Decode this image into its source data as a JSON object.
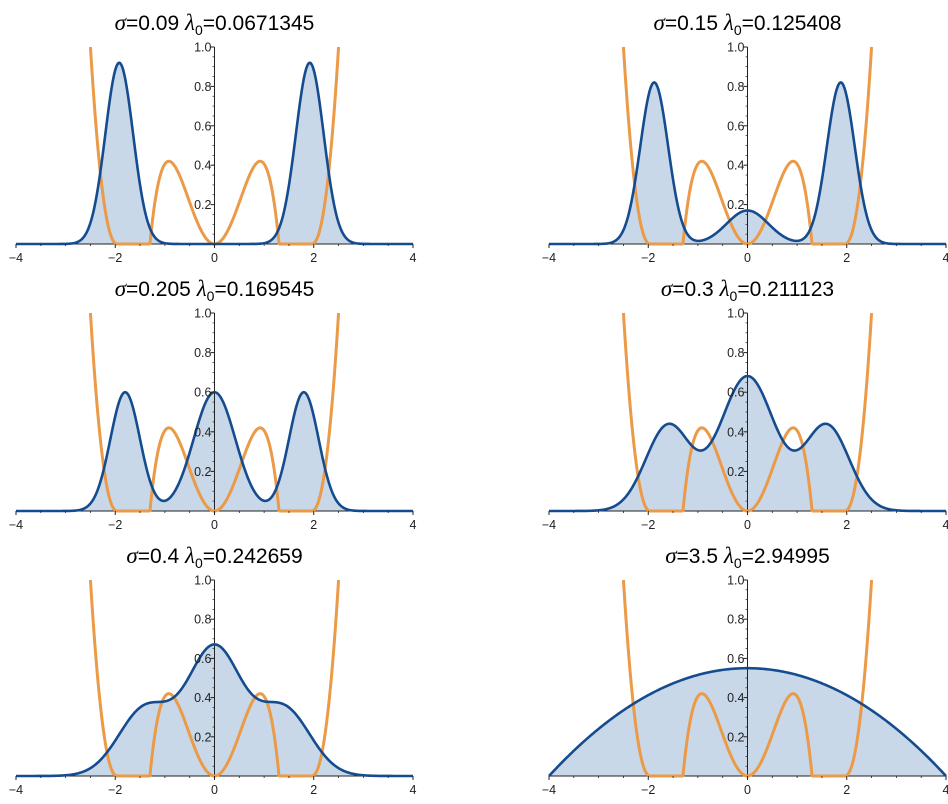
{
  "chart_data": [
    {
      "type": "area",
      "title": {
        "sym1": "σ",
        "v1": "=0.09 ",
        "sym2": "λ",
        "sub": "0",
        "v2": "=0.0671345"
      },
      "xlim": [
        -4,
        4
      ],
      "ylim": [
        0,
        1.0
      ],
      "x_ticks": [
        "−4",
        "−2",
        "0",
        "2",
        "4"
      ],
      "y_ticks": [
        "0.2",
        "0.4",
        "0.6",
        "0.8",
        "1.0"
      ],
      "density_peaks": [
        {
          "x": -1.92,
          "y": 0.92
        },
        {
          "x": 0.0,
          "y": 0.0
        },
        {
          "x": 1.92,
          "y": 0.92
        }
      ]
    },
    {
      "type": "area",
      "title": {
        "sym1": "σ",
        "v1": "=0.15 ",
        "sym2": "λ",
        "sub": "0",
        "v2": "=0.125408"
      },
      "xlim": [
        -4,
        4
      ],
      "ylim": [
        0,
        1.0
      ],
      "x_ticks": [
        "−4",
        "−2",
        "0",
        "2",
        "4"
      ],
      "y_ticks": [
        "0.2",
        "0.4",
        "0.6",
        "0.8",
        "1.0"
      ],
      "density_peaks": [
        {
          "x": -1.88,
          "y": 0.82
        },
        {
          "x": 0.0,
          "y": 0.17
        },
        {
          "x": 1.88,
          "y": 0.82
        }
      ]
    },
    {
      "type": "area",
      "title": {
        "sym1": "σ",
        "v1": "=0.205 ",
        "sym2": "λ",
        "sub": "0",
        "v2": "=0.169545"
      },
      "xlim": [
        -4,
        4
      ],
      "ylim": [
        0,
        1.0
      ],
      "x_ticks": [
        "−4",
        "−2",
        "0",
        "2",
        "4"
      ],
      "y_ticks": [
        "0.2",
        "0.4",
        "0.6",
        "0.8",
        "1.0"
      ],
      "density_peaks": [
        {
          "x": -1.8,
          "y": 0.6
        },
        {
          "x": 0.0,
          "y": 0.6
        },
        {
          "x": 1.8,
          "y": 0.6
        }
      ]
    },
    {
      "type": "area",
      "title": {
        "sym1": "σ",
        "v1": "=0.3 ",
        "sym2": "λ",
        "sub": "0",
        "v2": "=0.211123"
      },
      "xlim": [
        -4,
        4
      ],
      "ylim": [
        0,
        1.0
      ],
      "x_ticks": [
        "−4",
        "−2",
        "0",
        "2",
        "4"
      ],
      "y_ticks": [
        "0.2",
        "0.4",
        "0.6",
        "0.8",
        "1.0"
      ],
      "density_peaks": [
        {
          "x": -1.6,
          "y": 0.43
        },
        {
          "x": 0.0,
          "y": 0.68
        },
        {
          "x": 1.6,
          "y": 0.43
        }
      ]
    },
    {
      "type": "area",
      "title": {
        "sym1": "σ",
        "v1": "=0.4 ",
        "sym2": "λ",
        "sub": "0",
        "v2": "=0.242659"
      },
      "xlim": [
        -4,
        4
      ],
      "ylim": [
        0,
        1.0
      ],
      "x_ticks": [
        "−4",
        "−2",
        "0",
        "2",
        "4"
      ],
      "y_ticks": [
        "0.2",
        "0.4",
        "0.6",
        "0.8",
        "1.0"
      ],
      "density_peaks": [
        {
          "x": -1.4,
          "y": 0.34
        },
        {
          "x": 0.0,
          "y": 0.65
        },
        {
          "x": 1.4,
          "y": 0.34
        }
      ]
    },
    {
      "type": "area",
      "title": {
        "sym1": "σ",
        "v1": "=3.5 ",
        "sym2": "λ",
        "sub": "0",
        "v2": "=2.94995"
      },
      "xlim": [
        -4,
        4
      ],
      "ylim": [
        0,
        1.0
      ],
      "x_ticks": [
        "−4",
        "−2",
        "0",
        "2",
        "4"
      ],
      "y_ticks": [
        "0.2",
        "0.4",
        "0.6",
        "0.8",
        "1.0"
      ],
      "density_peaks": [
        {
          "x": -4.0,
          "y": 0.0
        },
        {
          "x": 0.0,
          "y": 0.55
        },
        {
          "x": 4.0,
          "y": 0.0
        }
      ]
    }
  ],
  "colors": {
    "density_line": "#154c8f",
    "density_fill": "#c9d8e8",
    "potential": "#eb9a48",
    "axis": "#222222"
  },
  "potential_curve": {
    "peak_x": 0.92,
    "peak_y": 0.42,
    "wall_x": 2.5
  }
}
